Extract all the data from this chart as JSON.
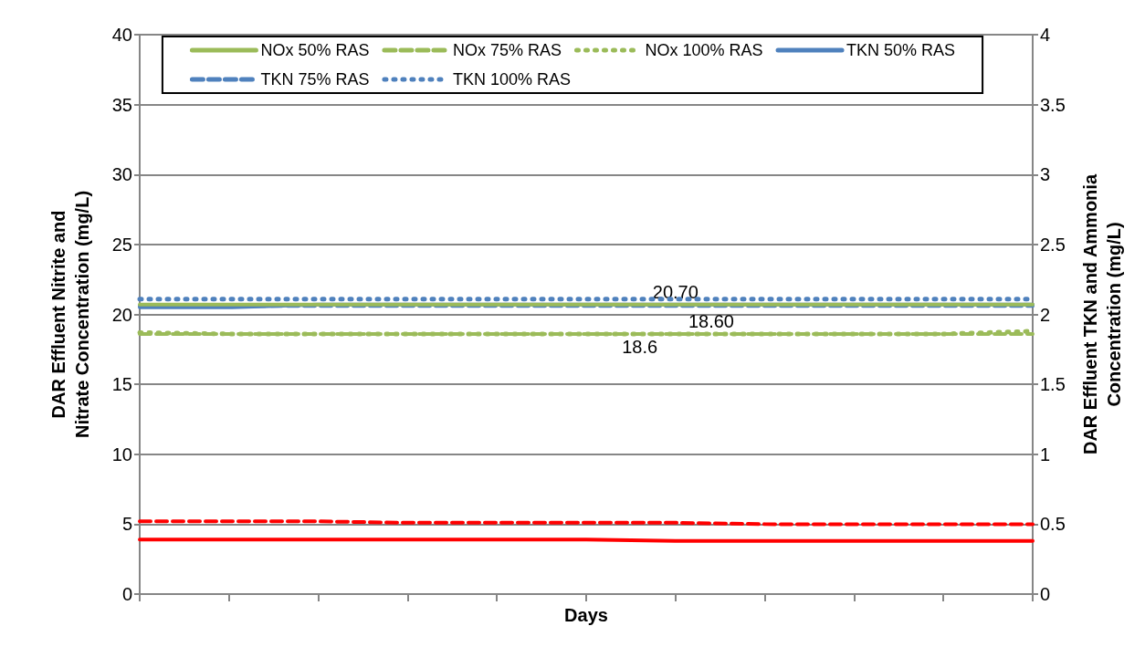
{
  "chart_data": {
    "type": "line",
    "xlabel": "Days",
    "ylabel": "DAR Effluent Nitrite and Nitrate Concentration (mg/L)",
    "y2label": "DAR Effluent TKN and Ammonia Concentration (mg/L)",
    "categories": [
      null,
      null,
      null,
      null,
      null,
      null,
      null,
      null,
      null,
      null,
      null
    ],
    "series": [
      {
        "name": "NOx 50% RAS",
        "color": "#9bbb59",
        "line_style": "solid",
        "values": [
          20.7,
          20.7,
          20.7,
          20.7,
          20.7,
          20.7,
          20.7,
          20.7,
          20.7,
          20.7,
          20.7
        ]
      },
      {
        "name": "NOx 75% RAS",
        "color": "#9bbb59",
        "line_style": "dashed",
        "values": [
          18.6,
          18.6,
          18.6,
          18.6,
          18.6,
          18.6,
          18.6,
          18.6,
          18.6,
          18.6,
          18.6
        ]
      },
      {
        "name": "NOx 100% RAS",
        "color": "#9bbb59",
        "line_style": "dotted",
        "values": [
          18.7,
          18.6,
          18.6,
          18.6,
          18.6,
          18.6,
          18.6,
          18.6,
          18.6,
          18.6,
          18.8
        ]
      },
      {
        "name": "TKN 50% RAS",
        "color": "#4f81bd",
        "line_style": "solid",
        "axis": "y2",
        "values": [
          2.05,
          2.05,
          2.07,
          2.07,
          2.07,
          2.07,
          2.07,
          2.07,
          2.07,
          2.07,
          2.07
        ]
      },
      {
        "name": "TKN 75% RAS",
        "color": "#4f81bd",
        "line_style": "dashed",
        "axis": "y2",
        "values": [
          2.06,
          2.06,
          2.06,
          2.06,
          2.06,
          2.06,
          2.06,
          2.06,
          2.06,
          2.06,
          2.06
        ]
      },
      {
        "name": "TKN 100% RAS",
        "color": "#4f81bd",
        "line_style": "dotted",
        "axis": "y2",
        "values": [
          2.11,
          2.11,
          2.11,
          2.11,
          2.11,
          2.11,
          2.11,
          2.11,
          2.11,
          2.11,
          2.11
        ]
      },
      {
        "color": "#ff0000",
        "line_style": "dashed",
        "values": [
          5.2,
          5.2,
          5.2,
          5.1,
          5.1,
          5.1,
          5.1,
          5.0,
          5.0,
          5.0,
          5.0
        ]
      },
      {
        "color": "#ff0000",
        "line_style": "solid",
        "values": [
          3.9,
          3.9,
          3.9,
          3.9,
          3.9,
          3.9,
          3.8,
          3.8,
          3.8,
          3.8,
          3.8
        ]
      }
    ],
    "ylim": [
      0,
      40
    ],
    "yticks": [
      0,
      5,
      10,
      15,
      20,
      25,
      30,
      35,
      40
    ],
    "y2lim": [
      0,
      4
    ],
    "y2ticks": [
      0,
      0.5,
      1,
      1.5,
      2,
      2.5,
      3,
      3.5,
      4
    ],
    "annotations": [
      {
        "text": "20.70",
        "y": 20.7
      },
      {
        "text": "18.60",
        "y": 18.6
      },
      {
        "text": "18.6",
        "y": 18.6
      }
    ],
    "grid": "y",
    "legend": "top",
    "marker": "none"
  }
}
